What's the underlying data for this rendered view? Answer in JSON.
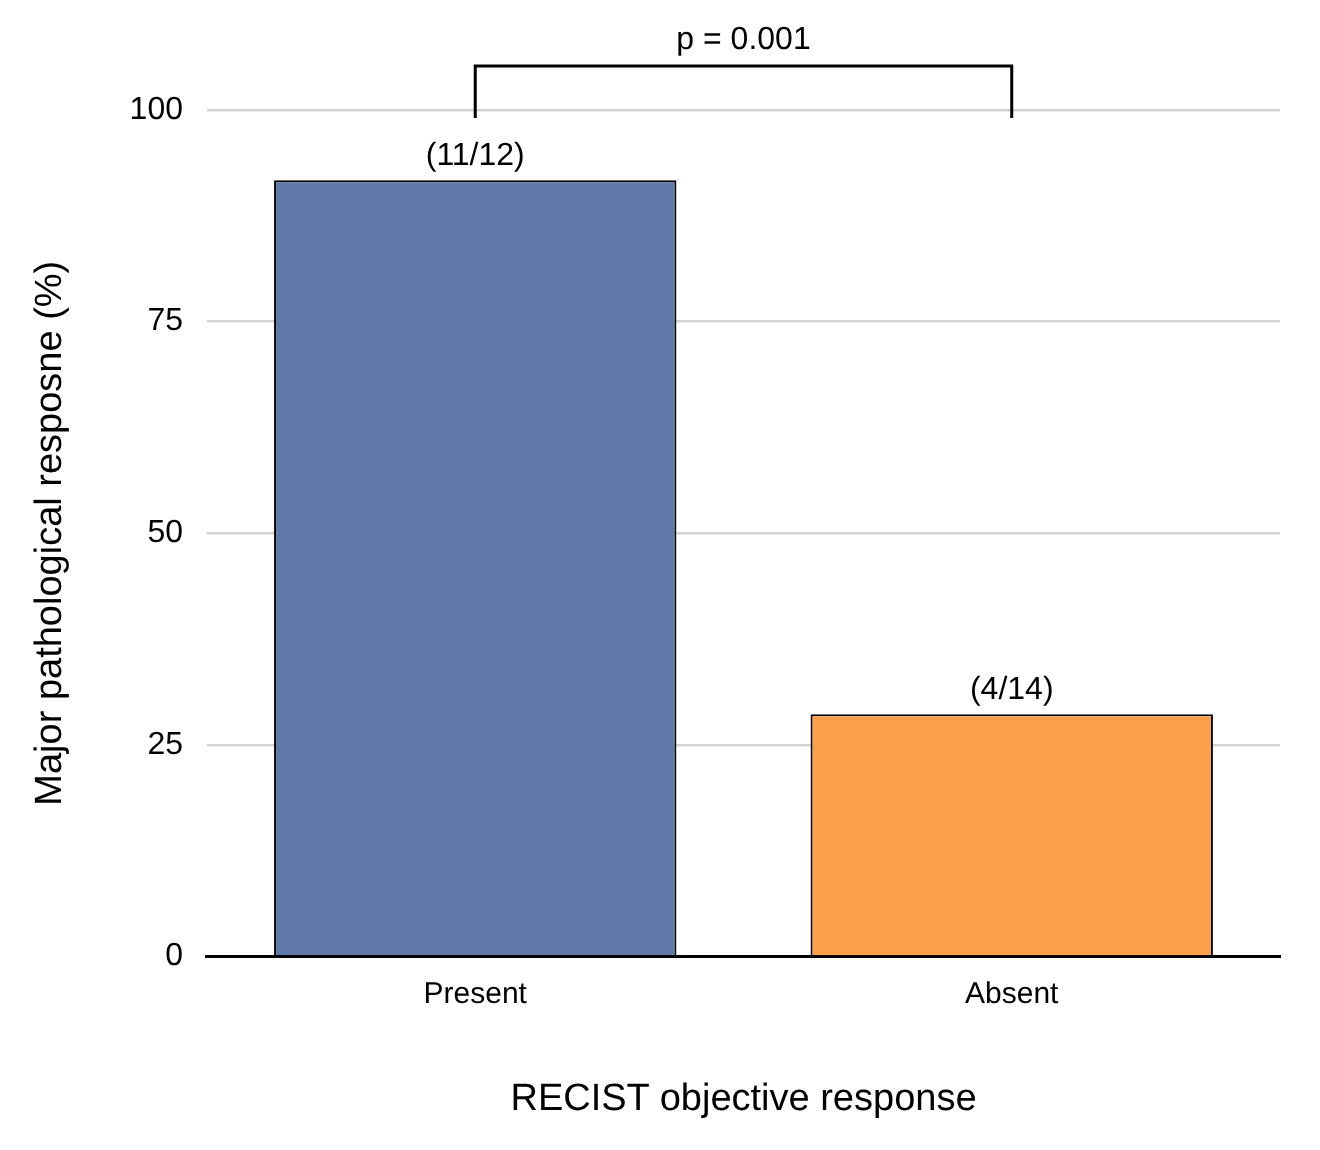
{
  "chart_data": {
    "type": "bar",
    "xlabel": "RECIST objective response",
    "ylabel": "Major pathological resposne (%)",
    "categories": [
      "Present",
      "Absent"
    ],
    "values": [
      91.7,
      28.6
    ],
    "colors": [
      "#6079ab",
      "#fba04a"
    ],
    "value_labels": [
      "(11/12)",
      "(4/14)"
    ],
    "ylim": [
      0,
      100
    ],
    "yticks": [
      0,
      25,
      50,
      75,
      100
    ],
    "grid": "y",
    "legend": false,
    "annotations": [
      "p = 0.001"
    ]
  }
}
